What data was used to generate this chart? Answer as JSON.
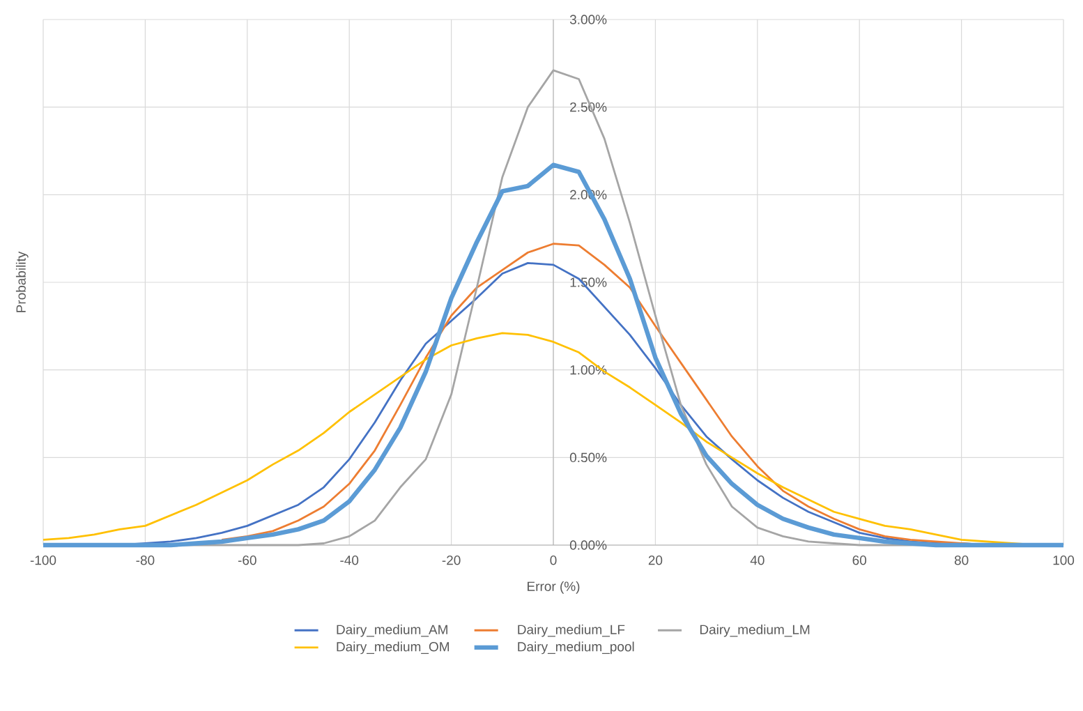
{
  "chart_data": {
    "type": "line",
    "xlabel": "Error (%)",
    "ylabel": "Probability",
    "x": [
      -100,
      -95,
      -90,
      -85,
      -80,
      -75,
      -70,
      -65,
      -60,
      -55,
      -50,
      -45,
      -40,
      -35,
      -30,
      -25,
      -20,
      -15,
      -10,
      -5,
      0,
      5,
      10,
      15,
      20,
      25,
      30,
      35,
      40,
      45,
      50,
      55,
      60,
      65,
      70,
      75,
      80,
      85,
      90,
      95,
      100
    ],
    "series": [
      {
        "name": "Dairy_medium_AM",
        "color": "#4472c4",
        "values": [
          0,
          0,
          0,
          0,
          0.01,
          0.02,
          0.04,
          0.07,
          0.11,
          0.17,
          0.23,
          0.33,
          0.49,
          0.7,
          0.94,
          1.15,
          1.28,
          1.41,
          1.55,
          1.61,
          1.6,
          1.52,
          1.36,
          1.2,
          1.01,
          0.8,
          0.62,
          0.49,
          0.37,
          0.27,
          0.19,
          0.13,
          0.07,
          0.04,
          0.02,
          0.01,
          0.01,
          0,
          0,
          0,
          0
        ]
      },
      {
        "name": "Dairy_medium_LF",
        "color": "#ed7d31",
        "values": [
          null,
          null,
          null,
          null,
          null,
          null,
          null,
          0.03,
          0.05,
          0.08,
          0.14,
          0.22,
          0.35,
          0.54,
          0.8,
          1.07,
          1.31,
          1.47,
          1.57,
          1.67,
          1.72,
          1.71,
          1.6,
          1.47,
          1.25,
          1.04,
          0.83,
          0.62,
          0.45,
          0.31,
          0.22,
          0.15,
          0.09,
          0.05,
          0.03,
          0.02,
          0.01,
          0,
          null,
          null,
          null
        ]
      },
      {
        "name": "Dairy_medium_LM",
        "color": "#a5a5a5",
        "values": [
          0,
          0,
          0,
          0,
          0,
          0,
          0,
          0,
          0,
          0,
          0,
          0.01,
          0.05,
          0.14,
          0.33,
          0.49,
          0.86,
          1.47,
          2.1,
          2.5,
          2.71,
          2.66,
          2.32,
          1.84,
          1.31,
          0.8,
          0.46,
          0.22,
          0.1,
          0.05,
          0.02,
          0.01,
          0,
          0,
          0,
          0,
          0,
          0,
          0,
          0,
          0
        ]
      },
      {
        "name": "Dairy_medium_OM",
        "color": "#ffc000",
        "values": [
          0.03,
          0.04,
          0.06,
          0.09,
          0.11,
          0.17,
          0.23,
          0.3,
          0.37,
          0.46,
          0.54,
          0.64,
          0.76,
          0.86,
          0.96,
          1.06,
          1.14,
          1.18,
          1.21,
          1.2,
          1.16,
          1.1,
          0.99,
          0.9,
          0.8,
          0.7,
          0.59,
          0.5,
          0.41,
          0.33,
          0.26,
          0.19,
          0.15,
          0.11,
          0.09,
          0.06,
          0.03,
          0.02,
          0.01,
          0,
          0
        ]
      },
      {
        "name": "Dairy_medium_pool",
        "color": "#5b9bd5",
        "values": [
          0,
          0,
          0,
          0,
          0,
          0,
          0.01,
          0.02,
          0.04,
          0.06,
          0.09,
          0.14,
          0.25,
          0.43,
          0.67,
          0.99,
          1.41,
          1.73,
          2.02,
          2.05,
          2.17,
          2.13,
          1.86,
          1.52,
          1.07,
          0.75,
          0.51,
          0.35,
          0.23,
          0.15,
          0.1,
          0.06,
          0.04,
          0.02,
          0.01,
          0,
          0,
          0,
          0,
          0,
          0
        ]
      }
    ],
    "xlim": [
      -100,
      100
    ],
    "xticks": [
      -100,
      -80,
      -60,
      -40,
      -20,
      0,
      20,
      40,
      60,
      80,
      100
    ],
    "ylim": [
      0,
      3
    ],
    "yticks": [
      {
        "value": 0,
        "label": "0.00%"
      },
      {
        "value": 0.5,
        "label": "0.50%"
      },
      {
        "value": 1,
        "label": "1.00%"
      },
      {
        "value": 1.5,
        "label": "1.50%"
      },
      {
        "value": 2,
        "label": "2.00%"
      },
      {
        "value": 2.5,
        "label": "2.50%"
      },
      {
        "value": 3,
        "label": "3.00%"
      }
    ],
    "grid": true,
    "legend": "bottom"
  }
}
